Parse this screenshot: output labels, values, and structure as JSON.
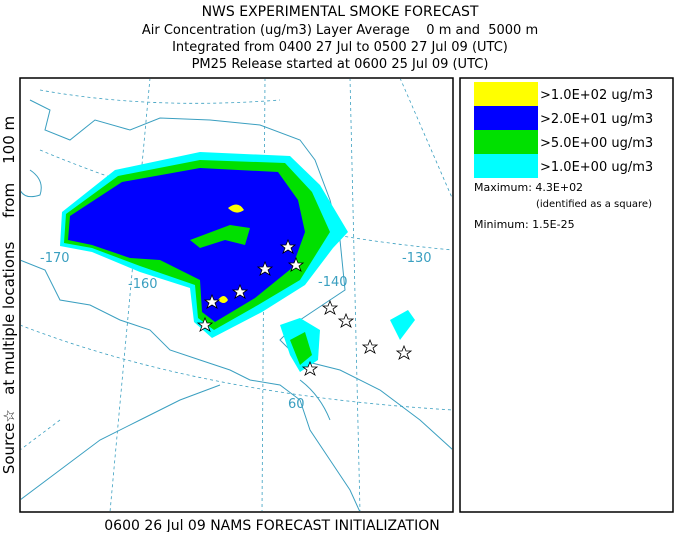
{
  "header": {
    "title": "NWS EXPERIMENTAL SMOKE FORECAST",
    "line1": "Air Concentration (ug/m3) Layer Average    0 m and  5000 m",
    "line2": "Integrated from 0400 27 Jul to 0500 27 Jul 09 (UTC)",
    "line3": "PM25 Release started at 0600 25 Jul 09 (UTC)"
  },
  "side_label": "Source☆   at multiple locations     from    100 m",
  "footer": "0600 26 Jul 09 NAMS FORECAST INITIALIZATION",
  "legend": {
    "entries": [
      {
        "label": ">1.0E+02 ug/m3",
        "color": "#ffff00"
      },
      {
        "label": ">2.0E+01 ug/m3",
        "color": "#0000ff"
      },
      {
        "label": ">5.0E+00 ug/m3",
        "color": "#00e000"
      },
      {
        "label": ">1.0E+00 ug/m3",
        "color": "#00ffff"
      }
    ],
    "maximum": "Maximum: 4.3E+02",
    "maximum_note": "(identified as a square)",
    "minimum": "Minimum: 1.5E-25"
  },
  "map": {
    "labels": [
      "-170",
      "-160",
      "-140",
      "-130",
      "60"
    ]
  }
}
